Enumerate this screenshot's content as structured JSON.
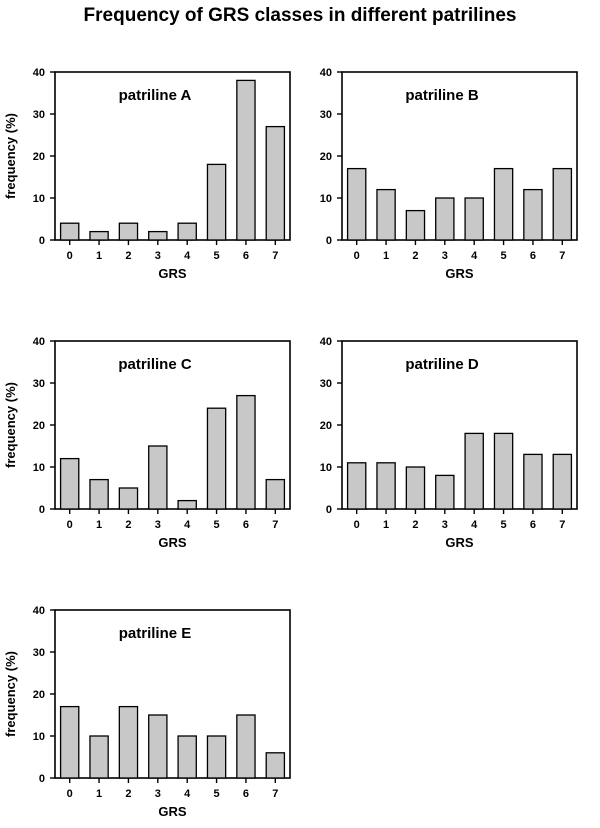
{
  "page": {
    "title": "Frequency of GRS classes in different patrilines"
  },
  "style": {
    "bar_fill": "#c8c8c8",
    "bar_stroke": "#000000",
    "axis_color": "#000000"
  },
  "chart_data": [
    {
      "type": "bar",
      "title": "patriline A",
      "xlabel": "GRS",
      "ylabel": "frequency (%)",
      "ylim": [
        0,
        40
      ],
      "yticks": [
        0,
        10,
        20,
        30,
        40
      ],
      "categories": [
        "0",
        "1",
        "2",
        "3",
        "4",
        "5",
        "6",
        "7"
      ],
      "values": [
        4,
        2,
        4,
        2,
        4,
        18,
        38,
        27
      ]
    },
    {
      "type": "bar",
      "title": "patriline B",
      "xlabel": "GRS",
      "ylabel": "",
      "ylim": [
        0,
        40
      ],
      "yticks": [
        0,
        10,
        20,
        30,
        40
      ],
      "categories": [
        "0",
        "1",
        "2",
        "3",
        "4",
        "5",
        "6",
        "7"
      ],
      "values": [
        17,
        12,
        7,
        10,
        10,
        17,
        12,
        17
      ]
    },
    {
      "type": "bar",
      "title": "patriline C",
      "xlabel": "GRS",
      "ylabel": "frequency (%)",
      "ylim": [
        0,
        40
      ],
      "yticks": [
        0,
        10,
        20,
        30,
        40
      ],
      "categories": [
        "0",
        "1",
        "2",
        "3",
        "4",
        "5",
        "6",
        "7"
      ],
      "values": [
        12,
        7,
        5,
        15,
        2,
        24,
        27,
        7
      ]
    },
    {
      "type": "bar",
      "title": "patriline D",
      "xlabel": "GRS",
      "ylabel": "",
      "ylim": [
        0,
        40
      ],
      "yticks": [
        0,
        10,
        20,
        30,
        40
      ],
      "categories": [
        "0",
        "1",
        "2",
        "3",
        "4",
        "5",
        "6",
        "7"
      ],
      "values": [
        11,
        11,
        10,
        8,
        18,
        18,
        13,
        13
      ]
    },
    {
      "type": "bar",
      "title": "patriline E",
      "xlabel": "GRS",
      "ylabel": "frequency (%)",
      "ylim": [
        0,
        40
      ],
      "yticks": [
        0,
        10,
        20,
        30,
        40
      ],
      "categories": [
        "0",
        "1",
        "2",
        "3",
        "4",
        "5",
        "6",
        "7"
      ],
      "values": [
        17,
        10,
        17,
        15,
        10,
        10,
        15,
        6
      ]
    }
  ]
}
